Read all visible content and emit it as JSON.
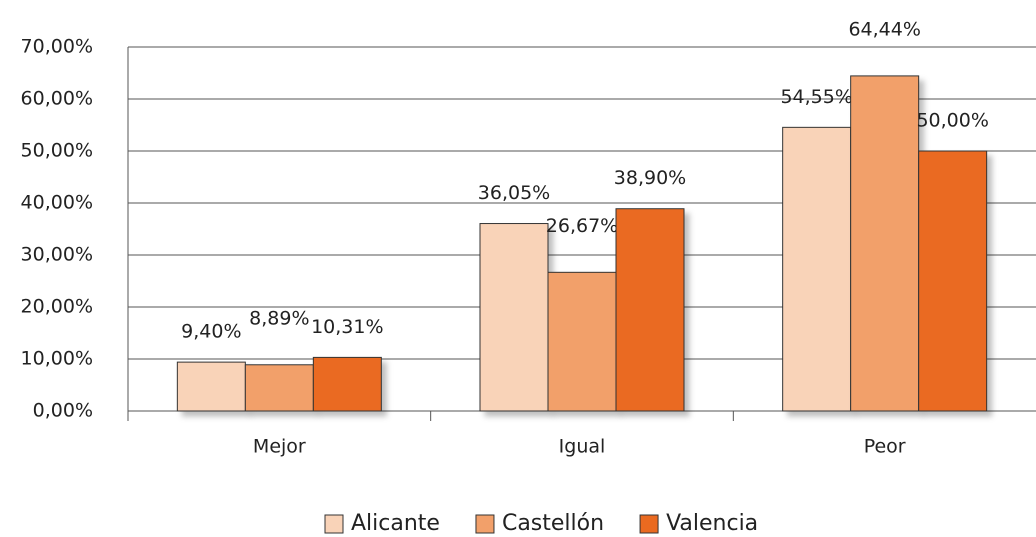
{
  "chart_data": {
    "type": "bar",
    "categories": [
      "Mejor",
      "Igual",
      "Peor"
    ],
    "series": [
      {
        "name": "Alicante",
        "color": "#f9d3b8",
        "values": [
          9.4,
          36.05,
          54.55
        ],
        "value_labels": [
          "9,40%",
          "36,05%",
          "54,55%"
        ]
      },
      {
        "name": "Castellón",
        "color": "#f2a06a",
        "values": [
          8.89,
          26.67,
          64.44
        ],
        "value_labels": [
          "8,89%",
          "26,67%",
          "64,44%"
        ]
      },
      {
        "name": "Valencia",
        "color": "#ea6a20",
        "values": [
          10.31,
          38.9,
          50.0
        ],
        "value_labels": [
          "10,31%",
          "38,90%",
          "50,00%"
        ]
      }
    ],
    "ylim": [
      0,
      70
    ],
    "yticks": [
      {
        "value": 0,
        "label": "0,00%"
      },
      {
        "value": 10,
        "label": "10,00%"
      },
      {
        "value": 20,
        "label": "20,00%"
      },
      {
        "value": 30,
        "label": "30,00%"
      },
      {
        "value": 40,
        "label": "40,00%"
      },
      {
        "value": 50,
        "label": "50,00%"
      },
      {
        "value": 60,
        "label": "60,00%"
      },
      {
        "value": 70,
        "label": "70,00%"
      }
    ],
    "grid": true,
    "legend": "bottom"
  }
}
